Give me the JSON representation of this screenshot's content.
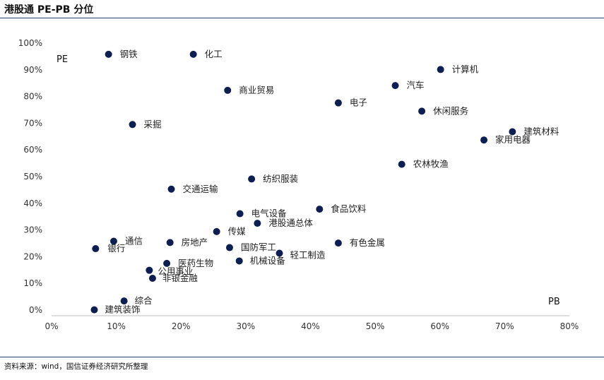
{
  "title": "港股通 PE-PB 分位",
  "source": "资料来源：wind，国信证券经济研究所整理",
  "chart_data": {
    "type": "scatter",
    "xlabel": "PB",
    "ylabel": "PE",
    "xlim": [
      0,
      80
    ],
    "ylim": [
      0,
      100
    ],
    "x_ticks": [
      "0%",
      "10%",
      "20%",
      "30%",
      "40%",
      "50%",
      "60%",
      "70%",
      "80%"
    ],
    "y_ticks": [
      "0%",
      "10%",
      "20%",
      "30%",
      "40%",
      "50%",
      "60%",
      "70%",
      "80%",
      "90%",
      "100%"
    ],
    "grid": false,
    "marker_color": "#0d1f52",
    "points": [
      {
        "label": "钢铁",
        "x": 8.8,
        "y": 95.8
      },
      {
        "label": "化工",
        "x": 21.9,
        "y": 95.8
      },
      {
        "label": "商业贸易",
        "x": 27.2,
        "y": 82.3
      },
      {
        "label": "计算机",
        "x": 60.1,
        "y": 90.1
      },
      {
        "label": "汽车",
        "x": 53.1,
        "y": 84.1
      },
      {
        "label": "电子",
        "x": 44.3,
        "y": 77.6
      },
      {
        "label": "休闲服务",
        "x": 57.2,
        "y": 74.5
      },
      {
        "label": "采掘",
        "x": 12.5,
        "y": 69.5
      },
      {
        "label": "建筑材料",
        "x": 71.2,
        "y": 66.8
      },
      {
        "label": "家用电器",
        "x": 66.8,
        "y": 63.7
      },
      {
        "label": "农林牧渔",
        "x": 54.1,
        "y": 54.6
      },
      {
        "label": "纺织服装",
        "x": 30.9,
        "y": 49.1
      },
      {
        "label": "交通运输",
        "x": 18.5,
        "y": 45.3
      },
      {
        "label": "食品饮料",
        "x": 41.4,
        "y": 37.8
      },
      {
        "label": "电气设备",
        "x": 29.1,
        "y": 36.1
      },
      {
        "label": "港股通总体",
        "x": 31.8,
        "y": 32.5
      },
      {
        "label": "传媒",
        "x": 25.5,
        "y": 29.4
      },
      {
        "label": "通信",
        "x": 9.6,
        "y": 25.8
      },
      {
        "label": "银行",
        "x": 6.8,
        "y": 23.0
      },
      {
        "label": "房地产",
        "x": 18.3,
        "y": 25.3
      },
      {
        "label": "有色金属",
        "x": 44.3,
        "y": 25.1
      },
      {
        "label": "国防军工",
        "x": 27.5,
        "y": 23.4
      },
      {
        "label": "轻工制造",
        "x": 35.2,
        "y": 21.3
      },
      {
        "label": "医药生物",
        "x": 17.8,
        "y": 17.5
      },
      {
        "label": "机械设备",
        "x": 29.0,
        "y": 18.4
      },
      {
        "label": "公用事业",
        "x": 15.1,
        "y": 14.9
      },
      {
        "label": "非银金融",
        "x": 15.6,
        "y": 11.9
      },
      {
        "label": "综合",
        "x": 11.2,
        "y": 3.4
      },
      {
        "label": "建筑装饰",
        "x": 6.6,
        "y": 0.1
      }
    ]
  }
}
